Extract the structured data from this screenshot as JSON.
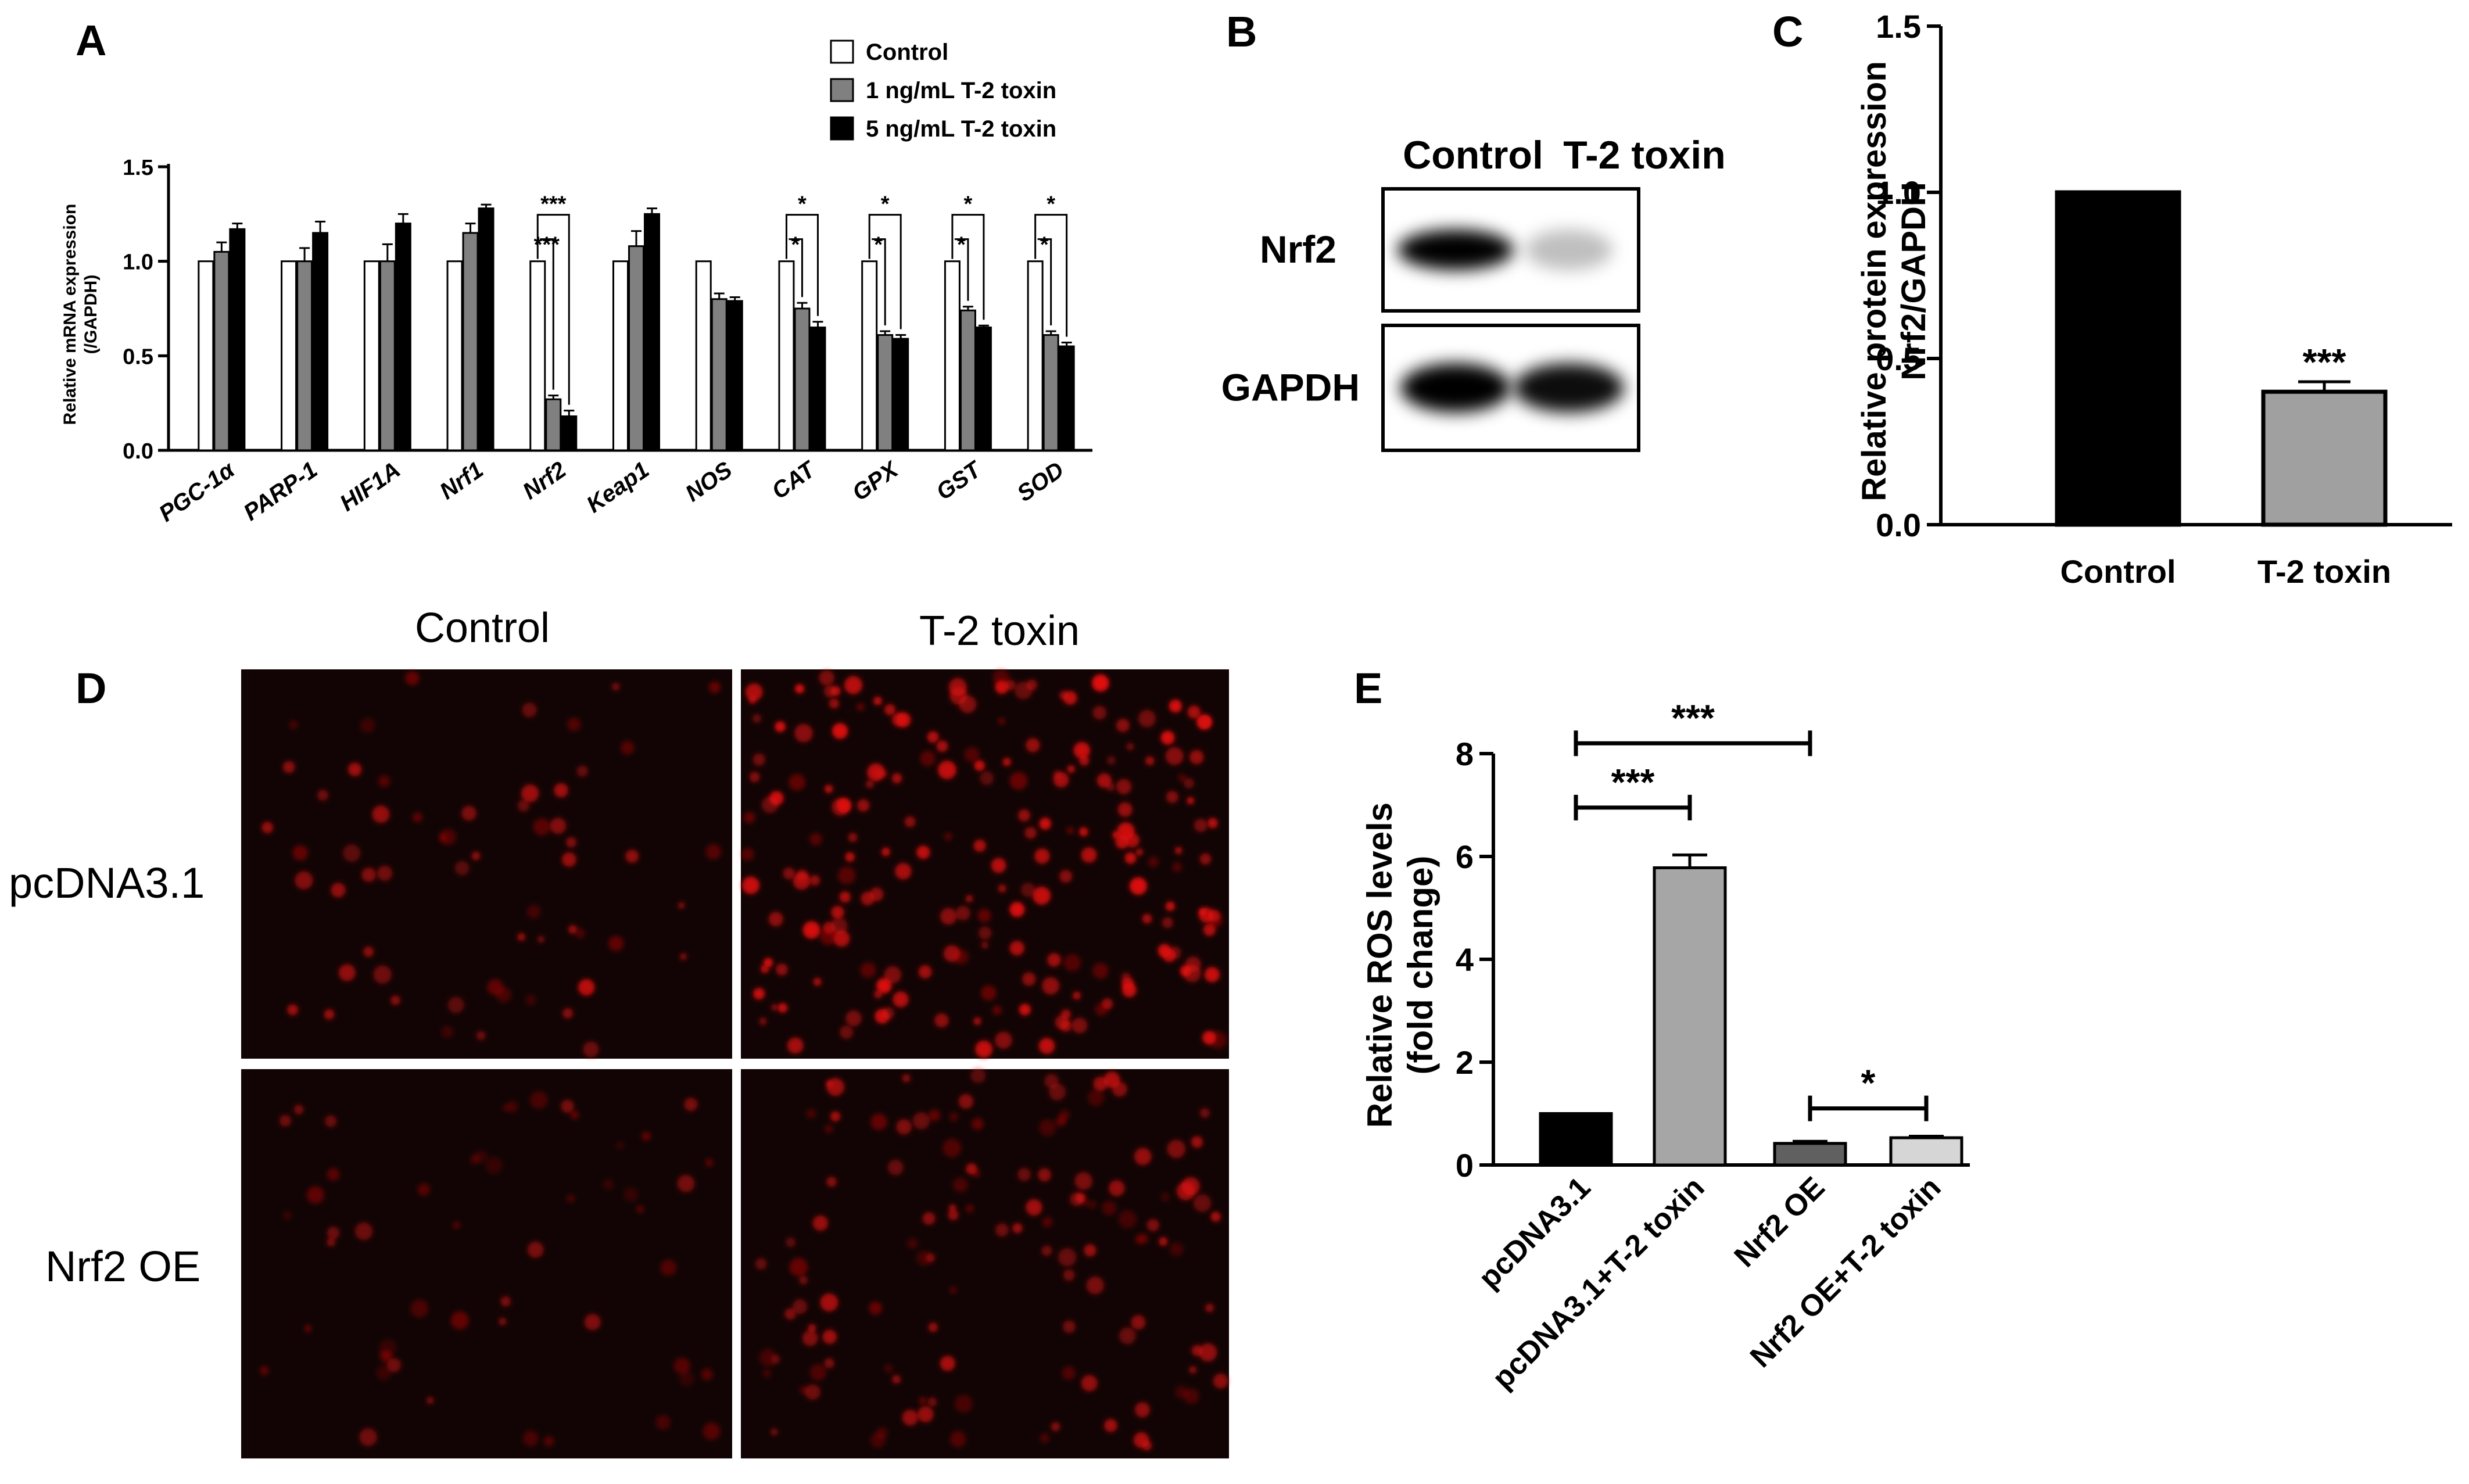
{
  "panel_letters": {
    "a": "A",
    "b": "B",
    "c": "C",
    "d": "D",
    "e": "E"
  },
  "chart_data": [
    {
      "id": "A",
      "type": "bar",
      "ylabel": "Relative mRNA expression (/GAPDH)",
      "ylabel_lines": [
        "Relative mRNA expression",
        "(/GAPDH)"
      ],
      "ylim": [
        0,
        1.5
      ],
      "yticks": [
        "0.0",
        "0.5",
        "1.0",
        "1.5"
      ],
      "categories": [
        "PGC-1α",
        "PARP-1",
        "HIF1A",
        "Nrf1",
        "Nrf2",
        "Keap1",
        "NOS",
        "CAT",
        "GPX",
        "GST",
        "SOD"
      ],
      "series": [
        {
          "name": "Control",
          "color": "#ffffff",
          "values": [
            1.0,
            1.0,
            1.0,
            1.0,
            1.0,
            1.0,
            1.0,
            1.0,
            1.0,
            1.0,
            1.0
          ],
          "errors": [
            0,
            0,
            0,
            0,
            0,
            0,
            0,
            0,
            0,
            0,
            0
          ]
        },
        {
          "name": "1 ng/mL T-2 toxin",
          "color": "#808080",
          "values": [
            1.05,
            1.0,
            1.0,
            1.15,
            0.27,
            1.08,
            0.8,
            0.75,
            0.61,
            0.74,
            0.61
          ],
          "errors": [
            0.05,
            0.07,
            0.09,
            0.05,
            0.02,
            0.08,
            0.03,
            0.03,
            0.02,
            0.02,
            0.02
          ]
        },
        {
          "name": "5 ng/mL T-2 toxin",
          "color": "#000000",
          "values": [
            1.17,
            1.15,
            1.2,
            1.28,
            0.18,
            1.25,
            0.79,
            0.65,
            0.59,
            0.65,
            0.55
          ],
          "errors": [
            0.03,
            0.06,
            0.05,
            0.02,
            0.03,
            0.03,
            0.02,
            0.03,
            0.02,
            0.01,
            0.02
          ]
        }
      ],
      "significance": [
        {
          "category": 4,
          "outer": "***",
          "inner": "***"
        },
        {
          "category": 7,
          "outer": "*",
          "inner": "*"
        },
        {
          "category": 8,
          "outer": "*",
          "inner": "*"
        },
        {
          "category": 9,
          "outer": "*",
          "inner": "*"
        },
        {
          "category": 10,
          "outer": "*",
          "inner": "*"
        }
      ],
      "legend_position": "top-right"
    },
    {
      "id": "C",
      "type": "bar",
      "ylabel": "Relative protein expression Nrf2/GAPDH",
      "ylabel_lines": [
        "Relative protein expression",
        "Nrf2/GAPDH"
      ],
      "ylim": [
        0,
        1.5
      ],
      "yticks": [
        "0.0",
        "0.5",
        "1.0",
        "1.5"
      ],
      "categories": [
        "Control",
        "T-2 toxin"
      ],
      "values": [
        1.0,
        0.4
      ],
      "errors": [
        0,
        0.03
      ],
      "colors": [
        "#000000",
        "#a0a0a0"
      ],
      "significance": [
        "",
        "***"
      ]
    },
    {
      "id": "E",
      "type": "bar",
      "ylabel": "Relative ROS levels (fold change)",
      "ylabel_lines": [
        "Relative ROS levels",
        "(fold change)"
      ],
      "ylim": [
        0,
        8
      ],
      "yticks": [
        "0",
        "2",
        "4",
        "6",
        "8"
      ],
      "categories": [
        "pcDNA3.1",
        "pcDNA3.1+T-2 toxin",
        "Nrf2 OE",
        "Nrf2 OE+T-2 toxin"
      ],
      "values": [
        1.0,
        5.78,
        0.42,
        0.53
      ],
      "errors": [
        0,
        0.25,
        0.04,
        0.03
      ],
      "colors": [
        "#000000",
        "#a6a6a6",
        "#606060",
        "#d6d6d6"
      ],
      "brackets": [
        {
          "from": 0,
          "to": 2,
          "label": "***",
          "y": 8.2
        },
        {
          "from": 0,
          "to": 1,
          "label": "***",
          "y": 6.95
        },
        {
          "from": 2,
          "to": 3,
          "label": "*",
          "y": 1.1
        }
      ]
    }
  ],
  "western_blot": {
    "columns": [
      "Control",
      "T-2 toxin"
    ],
    "rows": [
      "Nrf2",
      "GAPDH"
    ],
    "band_intensity": [
      [
        1.0,
        0.25
      ],
      [
        1.0,
        0.95
      ]
    ]
  },
  "micrographs": {
    "column_labels": [
      "Control",
      "T-2 toxin"
    ],
    "row_labels": [
      "pcDNA3.1",
      "Nrf2 OE"
    ],
    "fluorescence_color": "#e01010"
  }
}
